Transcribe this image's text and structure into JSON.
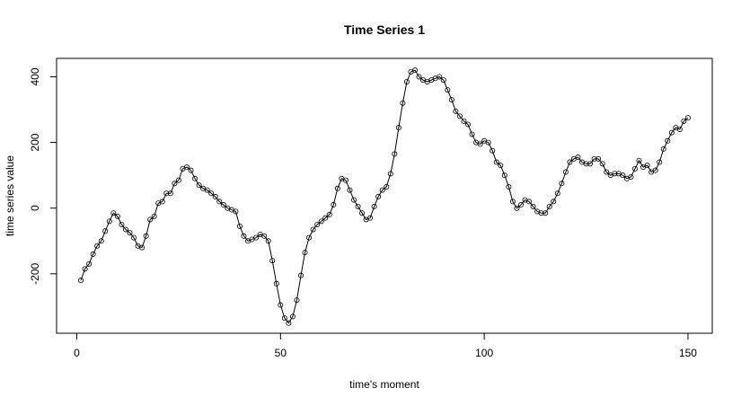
{
  "chart_data": {
    "type": "line",
    "title": "Time Series 1",
    "xlabel": "time's moment",
    "ylabel": "time series value",
    "x": [
      1,
      2,
      3,
      4,
      5,
      6,
      7,
      8,
      9,
      10,
      11,
      12,
      13,
      14,
      15,
      16,
      17,
      18,
      19,
      20,
      21,
      22,
      23,
      24,
      25,
      26,
      27,
      28,
      29,
      30,
      31,
      32,
      33,
      34,
      35,
      36,
      37,
      38,
      39,
      40,
      41,
      42,
      43,
      44,
      45,
      46,
      47,
      48,
      49,
      50,
      51,
      52,
      53,
      54,
      55,
      56,
      57,
      58,
      59,
      60,
      61,
      62,
      63,
      64,
      65,
      66,
      67,
      68,
      69,
      70,
      71,
      72,
      73,
      74,
      75,
      76,
      77,
      78,
      79,
      80,
      81,
      82,
      83,
      84,
      85,
      86,
      87,
      88,
      89,
      90,
      91,
      92,
      93,
      94,
      95,
      96,
      97,
      98,
      99,
      100,
      101,
      102,
      103,
      104,
      105,
      106,
      107,
      108,
      109,
      110,
      111,
      112,
      113,
      114,
      115,
      116,
      117,
      118,
      119,
      120,
      121,
      122,
      123,
      124,
      125,
      126,
      127,
      128,
      129,
      130,
      131,
      132,
      133,
      134,
      135,
      136,
      137,
      138,
      139,
      140,
      141,
      142,
      143,
      144,
      145,
      146,
      147,
      148,
      149,
      150
    ],
    "series": [
      {
        "color": "#000000",
        "values": [
          -220,
          -185,
          -170,
          -140,
          -115,
          -100,
          -70,
          -40,
          -15,
          -25,
          -50,
          -65,
          -75,
          -90,
          -115,
          -120,
          -85,
          -35,
          -25,
          15,
          20,
          45,
          45,
          75,
          85,
          120,
          125,
          115,
          90,
          70,
          60,
          55,
          45,
          35,
          20,
          10,
          0,
          -5,
          -10,
          -55,
          -85,
          -100,
          -95,
          -90,
          -80,
          -85,
          -100,
          -160,
          -230,
          -295,
          -335,
          -350,
          -330,
          -280,
          -205,
          -135,
          -90,
          -65,
          -50,
          -40,
          -30,
          -20,
          10,
          60,
          90,
          85,
          55,
          25,
          5,
          -15,
          -35,
          -30,
          5,
          35,
          55,
          65,
          105,
          165,
          245,
          320,
          385,
          415,
          420,
          400,
          390,
          385,
          390,
          395,
          400,
          390,
          360,
          330,
          295,
          280,
          265,
          255,
          225,
          200,
          195,
          205,
          200,
          175,
          140,
          130,
          100,
          65,
          20,
          0,
          10,
          25,
          20,
          5,
          -10,
          -15,
          -15,
          5,
          20,
          45,
          75,
          110,
          140,
          150,
          155,
          140,
          135,
          135,
          150,
          150,
          135,
          110,
          100,
          105,
          105,
          100,
          90,
          95,
          120,
          145,
          125,
          130,
          110,
          115,
          140,
          180,
          205,
          230,
          245,
          240,
          265,
          275
        ]
      }
    ],
    "xlim": [
      -4.96,
      155.96
    ],
    "xticks": [
      0,
      50,
      100,
      150
    ],
    "ylim": [
      -381,
      456
    ],
    "yticks": [
      -200,
      0,
      200,
      400
    ]
  }
}
